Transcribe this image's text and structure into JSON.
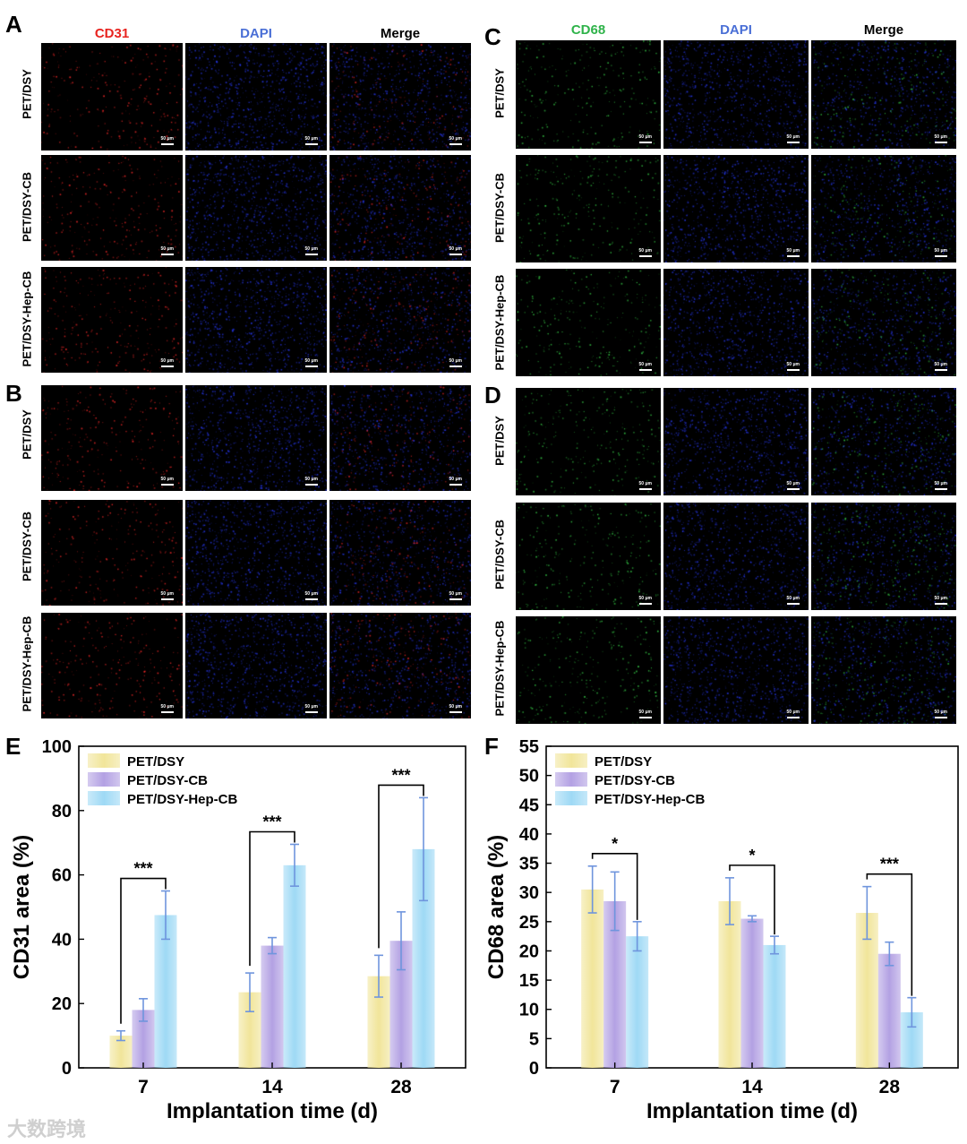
{
  "panels": {
    "A": {
      "letter": "A",
      "headers": [
        "CD31",
        "DAPI",
        "Merge"
      ],
      "rows": [
        "PET/DSY",
        "PET/DSY-CB",
        "PET/DSY-Hep-CB"
      ],
      "marker_color": "#e8231f",
      "image_color": "#ff2a2a"
    },
    "B": {
      "letter": "B",
      "headers": [],
      "rows": [
        "PET/DSY",
        "PET/DSY-CB",
        "PET/DSY-Hep-CB"
      ],
      "image_color": "#ff2a2a"
    },
    "C": {
      "letter": "C",
      "headers": [
        "CD68",
        "DAPI",
        "Merge"
      ],
      "rows": [
        "PET/DSY",
        "PET/DSY-CB",
        "PET/DSY-Hep-CB"
      ],
      "marker_color": "#2fb34a",
      "image_color": "#38d44a"
    },
    "D": {
      "letter": "D",
      "headers": [],
      "rows": [
        "PET/DSY",
        "PET/DSY-CB",
        "PET/DSY-Hep-CB"
      ],
      "image_color": "#38d44a"
    }
  },
  "header_colors": {
    "dapi": "#4a6fd6",
    "merge": "#000000"
  },
  "scale_bar": "50 μm",
  "chart_data": [
    {
      "panel": "E",
      "type": "bar",
      "xlabel": "Implantation time (d)",
      "ylabel": "CD31 area (%)",
      "ylim": [
        0,
        100
      ],
      "yticks": [
        0,
        20,
        40,
        60,
        80,
        100
      ],
      "categories": [
        "7",
        "14",
        "28"
      ],
      "legend_position": "top-left",
      "series": [
        {
          "name": "PET/DSY",
          "values": [
            10,
            23.5,
            28.5
          ],
          "errors": [
            1.5,
            6,
            6.5
          ],
          "color": "#f1e59a"
        },
        {
          "name": "PET/DSY-CB",
          "values": [
            18,
            38,
            39.5
          ],
          "errors": [
            3.5,
            2.5,
            9
          ],
          "color": "#b3a1e3"
        },
        {
          "name": "PET/DSY-Hep-CB",
          "values": [
            47.5,
            63,
            68
          ],
          "errors": [
            7.5,
            6.5,
            16
          ],
          "color": "#9ed9f5"
        }
      ],
      "significance": [
        {
          "category": 0,
          "from": 0,
          "to": 2,
          "label": "***"
        },
        {
          "category": 1,
          "from": 0,
          "to": 2,
          "label": "***"
        },
        {
          "category": 2,
          "from": 0,
          "to": 2,
          "label": "***"
        }
      ]
    },
    {
      "panel": "F",
      "type": "bar",
      "xlabel": "Implantation time (d)",
      "ylabel": "CD68 area (%)",
      "ylim": [
        0,
        55
      ],
      "yticks": [
        0,
        5,
        10,
        15,
        20,
        25,
        30,
        35,
        40,
        45,
        50,
        55
      ],
      "categories": [
        "7",
        "14",
        "28"
      ],
      "legend_position": "top-left",
      "series": [
        {
          "name": "PET/DSY",
          "values": [
            30.5,
            28.5,
            26.5
          ],
          "errors": [
            4,
            4,
            4.5
          ],
          "color": "#f1e59a"
        },
        {
          "name": "PET/DSY-CB",
          "values": [
            28.5,
            25.5,
            19.5
          ],
          "errors": [
            5,
            0.5,
            2
          ],
          "color": "#b3a1e3"
        },
        {
          "name": "PET/DSY-Hep-CB",
          "values": [
            22.5,
            21,
            9.5
          ],
          "errors": [
            2.5,
            1.5,
            2.5
          ],
          "color": "#9ed9f5"
        }
      ],
      "significance": [
        {
          "category": 0,
          "from": 0,
          "to": 2,
          "label": "*"
        },
        {
          "category": 1,
          "from": 0,
          "to": 2,
          "label": "*"
        },
        {
          "category": 2,
          "from": 0,
          "to": 2,
          "label": "***"
        }
      ]
    }
  ],
  "watermark": "大数跨境"
}
